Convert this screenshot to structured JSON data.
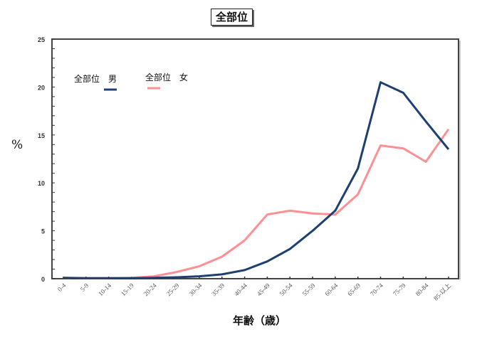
{
  "title": "全部位",
  "ylabel": "%",
  "xlabel": "年齢（歳）",
  "legend": [
    {
      "label": "全部位　男",
      "color": "#1f3f73"
    },
    {
      "label": "全部位　女",
      "color": "#ff8f93"
    }
  ],
  "chart_data": {
    "type": "line",
    "title": "全部位",
    "xlabel": "年齢（歳）",
    "ylabel": "%",
    "ylim": [
      0,
      25
    ],
    "yticks": [
      0,
      5,
      10,
      15,
      20,
      25
    ],
    "grid": false,
    "legend_position": "upper-left",
    "categories": [
      "0-4",
      "5-9",
      "10-14",
      "15-19",
      "20-24",
      "25-29",
      "30-34",
      "35-39",
      "40-44",
      "45-49",
      "50-54",
      "55-59",
      "60-64",
      "65-69",
      "70-74",
      "75-79",
      "80-84",
      "85-以上"
    ],
    "series": [
      {
        "name": "全部位　男",
        "color": "#1f3f73",
        "values": [
          0.1,
          0.05,
          0.05,
          0.05,
          0.1,
          0.15,
          0.25,
          0.45,
          0.9,
          1.8,
          3.1,
          5.0,
          7.1,
          11.5,
          20.5,
          19.4,
          16.4,
          13.5
        ]
      },
      {
        "name": "全部位　女",
        "color": "#ff8f93",
        "values": [
          0.1,
          0.05,
          0.05,
          0.1,
          0.25,
          0.7,
          1.3,
          2.3,
          4.0,
          6.7,
          7.1,
          6.8,
          6.7,
          8.8,
          13.9,
          13.6,
          12.2,
          15.6
        ]
      }
    ]
  }
}
